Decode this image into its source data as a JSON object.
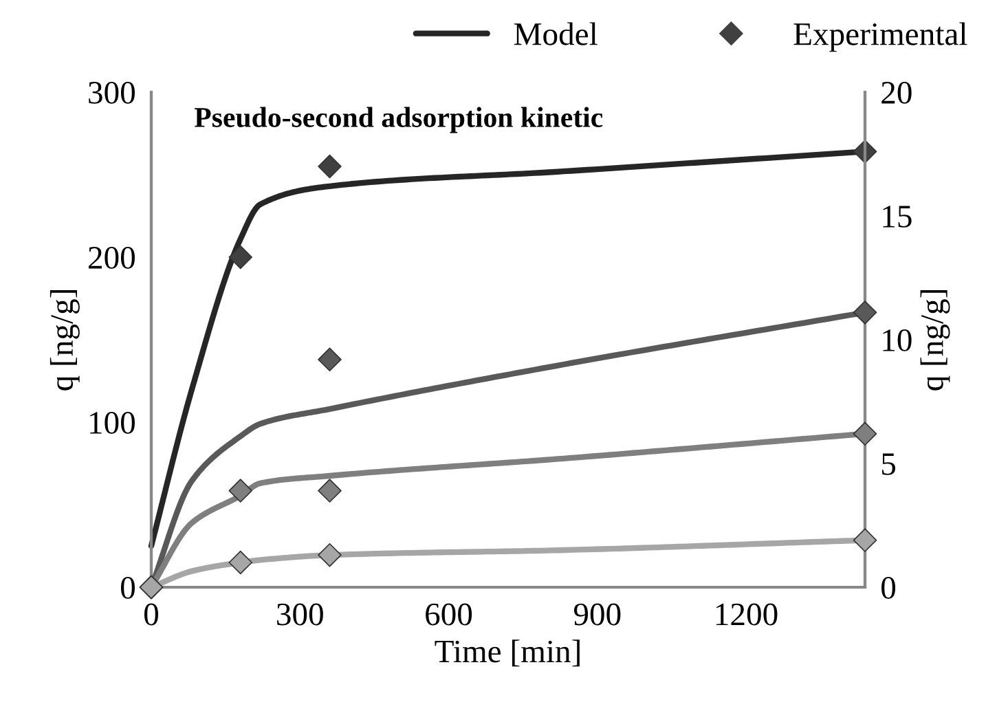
{
  "chart_data": {
    "type": "line",
    "title": "Pseudo-second adsorption kinetic",
    "xlabel": "Time [min]",
    "ylabel": "q [ng/g]",
    "y2label": "q [ng/g]",
    "xlim": [
      0,
      1440
    ],
    "xticks": [
      0,
      300,
      600,
      900,
      1200
    ],
    "ylim": [
      0,
      300
    ],
    "yticks": [
      0,
      100,
      200,
      300
    ],
    "y2lim": [
      0,
      20
    ],
    "y2ticks": [
      0,
      5,
      10,
      15,
      20
    ],
    "grid": false,
    "legend": "top right",
    "series": [
      {
        "name": "Model",
        "color": "#262626",
        "x": [
          0,
          82,
          180,
          220,
          360,
          832,
          1440
        ],
        "values": [
          25,
          120,
          211,
          232,
          243,
          252,
          264
        ],
        "marker": "none"
      },
      {
        "name": "Experimental",
        "type": "scatter",
        "color": "#404040",
        "x": [
          0,
          180,
          360,
          1440
        ],
        "values": [
          0,
          200,
          255,
          264
        ],
        "marker": "diamond"
      },
      {
        "axis": "y2",
        "color": "#595959",
        "x": [
          0,
          82,
          180,
          220,
          360,
          832,
          1440
        ],
        "values": [
          0,
          4.3,
          6.1,
          6.6,
          7.2,
          9.0,
          11.1
        ],
        "marker": "none"
      },
      {
        "type": "scatter",
        "axis": "y2",
        "color": "#595959",
        "x": [
          0,
          180,
          360,
          1440
        ],
        "values": [
          0,
          null,
          9.2,
          11.1
        ],
        "marker": "diamond"
      },
      {
        "axis": "y2",
        "color": "#7f7f7f",
        "x": [
          0,
          82,
          180,
          220,
          360,
          832,
          1440
        ],
        "values": [
          0,
          2.6,
          3.7,
          4.2,
          4.5,
          5.2,
          6.2
        ],
        "marker": "none"
      },
      {
        "type": "scatter",
        "axis": "y2",
        "color": "#7f7f7f",
        "x": [
          0,
          180,
          360,
          1440
        ],
        "values": [
          0,
          3.9,
          3.9,
          6.2
        ],
        "marker": "diamond"
      },
      {
        "axis": "y2",
        "color": "#a6a6a6",
        "x": [
          0,
          82,
          180,
          220,
          360,
          832,
          1440
        ],
        "values": [
          0,
          0.65,
          1.0,
          1.1,
          1.3,
          1.5,
          1.9
        ],
        "marker": "none"
      },
      {
        "type": "scatter",
        "axis": "y2",
        "color": "#a6a6a6",
        "x": [
          0,
          180,
          360,
          1440
        ],
        "values": [
          0,
          1.0,
          1.3,
          1.9
        ],
        "marker": "diamond"
      }
    ]
  }
}
